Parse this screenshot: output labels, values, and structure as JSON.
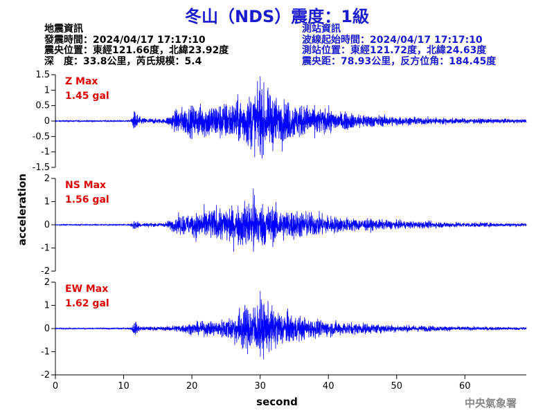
{
  "title": "冬山（NDS）震度：1級",
  "quake_info": {
    "heading": "地震資訊",
    "origin_time": "發震時間：2024/04/17 17:17:10",
    "epicenter": "震央位置：東經121.66度，北緯23.92度",
    "depth_magnitude": "深　度：33.8公里，芮氏規模：5.4"
  },
  "station_info": {
    "heading": "測站資訊",
    "wave_start": "波線起始時間：2024/04/17 17:17:10",
    "station_location": "測站位置：東經121.72度，北緯24.63度",
    "distance": "震央距：78.93公里，反方位角：184.45度"
  },
  "watermark": "中央氣象署",
  "colors": {
    "trace": "#0000ff",
    "title": "#1a1ad0",
    "max_label": "#e00000"
  },
  "chart_data": [
    {
      "type": "line",
      "component": "Z",
      "max_label": "Z Max",
      "max_value": "1.45 gal",
      "ylim": [
        -1.5,
        1.5
      ],
      "yticks": [
        -1.5,
        -1,
        -0.5,
        0,
        0.5,
        1,
        1.5
      ],
      "ytick_labels": [
        "-1.5",
        "-1",
        "-0.5",
        "0",
        "0.5",
        "1",
        "1.5"
      ],
      "peak": 1.45,
      "envelope": [
        [
          0,
          0.03
        ],
        [
          11,
          0.04
        ],
        [
          11.6,
          0.5
        ],
        [
          12.5,
          0.15
        ],
        [
          16,
          0.1
        ],
        [
          18,
          0.6
        ],
        [
          22,
          0.8
        ],
        [
          26,
          0.9
        ],
        [
          30,
          1.45
        ],
        [
          33,
          1.0
        ],
        [
          37,
          0.7
        ],
        [
          42,
          0.4
        ],
        [
          50,
          0.2
        ],
        [
          60,
          0.12
        ],
        [
          69,
          0.08
        ]
      ]
    },
    {
      "type": "line",
      "component": "NS",
      "max_label": "NS Max",
      "max_value": "1.56 gal",
      "ylim": [
        -2,
        2
      ],
      "yticks": [
        -2,
        -1,
        0,
        1,
        2
      ],
      "ytick_labels": [
        "-2",
        "-1",
        "0",
        "1",
        "2"
      ],
      "peak": 1.56,
      "envelope": [
        [
          0,
          0.03
        ],
        [
          11,
          0.04
        ],
        [
          11.5,
          0.4
        ],
        [
          12.5,
          0.12
        ],
        [
          16,
          0.12
        ],
        [
          18,
          0.55
        ],
        [
          22,
          0.9
        ],
        [
          26,
          1.1
        ],
        [
          29,
          1.56
        ],
        [
          33,
          1.0
        ],
        [
          37,
          0.8
        ],
        [
          42,
          0.45
        ],
        [
          50,
          0.25
        ],
        [
          60,
          0.15
        ],
        [
          69,
          0.1
        ]
      ]
    },
    {
      "type": "line",
      "component": "EW",
      "max_label": "EW Max",
      "max_value": "1.62 gal",
      "ylim": [
        -2,
        2
      ],
      "yticks": [
        -2,
        -1,
        0,
        1,
        2
      ],
      "ytick_labels": [
        "-2",
        "-1",
        "0",
        "1",
        "2"
      ],
      "peak": 1.62,
      "envelope": [
        [
          0,
          0.03
        ],
        [
          11,
          0.04
        ],
        [
          11.6,
          0.45
        ],
        [
          12.5,
          0.12
        ],
        [
          16,
          0.12
        ],
        [
          20,
          0.35
        ],
        [
          24,
          0.5
        ],
        [
          26.5,
          0.9
        ],
        [
          27,
          1.3
        ],
        [
          30,
          1.62
        ],
        [
          33,
          1.1
        ],
        [
          37,
          0.6
        ],
        [
          42,
          0.4
        ],
        [
          50,
          0.22
        ],
        [
          60,
          0.12
        ],
        [
          69,
          0.08
        ]
      ]
    }
  ],
  "x_axis": {
    "label": "second",
    "xlim": [
      0,
      69
    ],
    "ticks": [
      0,
      10,
      20,
      30,
      40,
      50,
      60
    ],
    "tick_labels": [
      "0",
      "10",
      "20",
      "30",
      "40",
      "50",
      "60"
    ]
  },
  "y_axis": {
    "label": "acceleration"
  }
}
